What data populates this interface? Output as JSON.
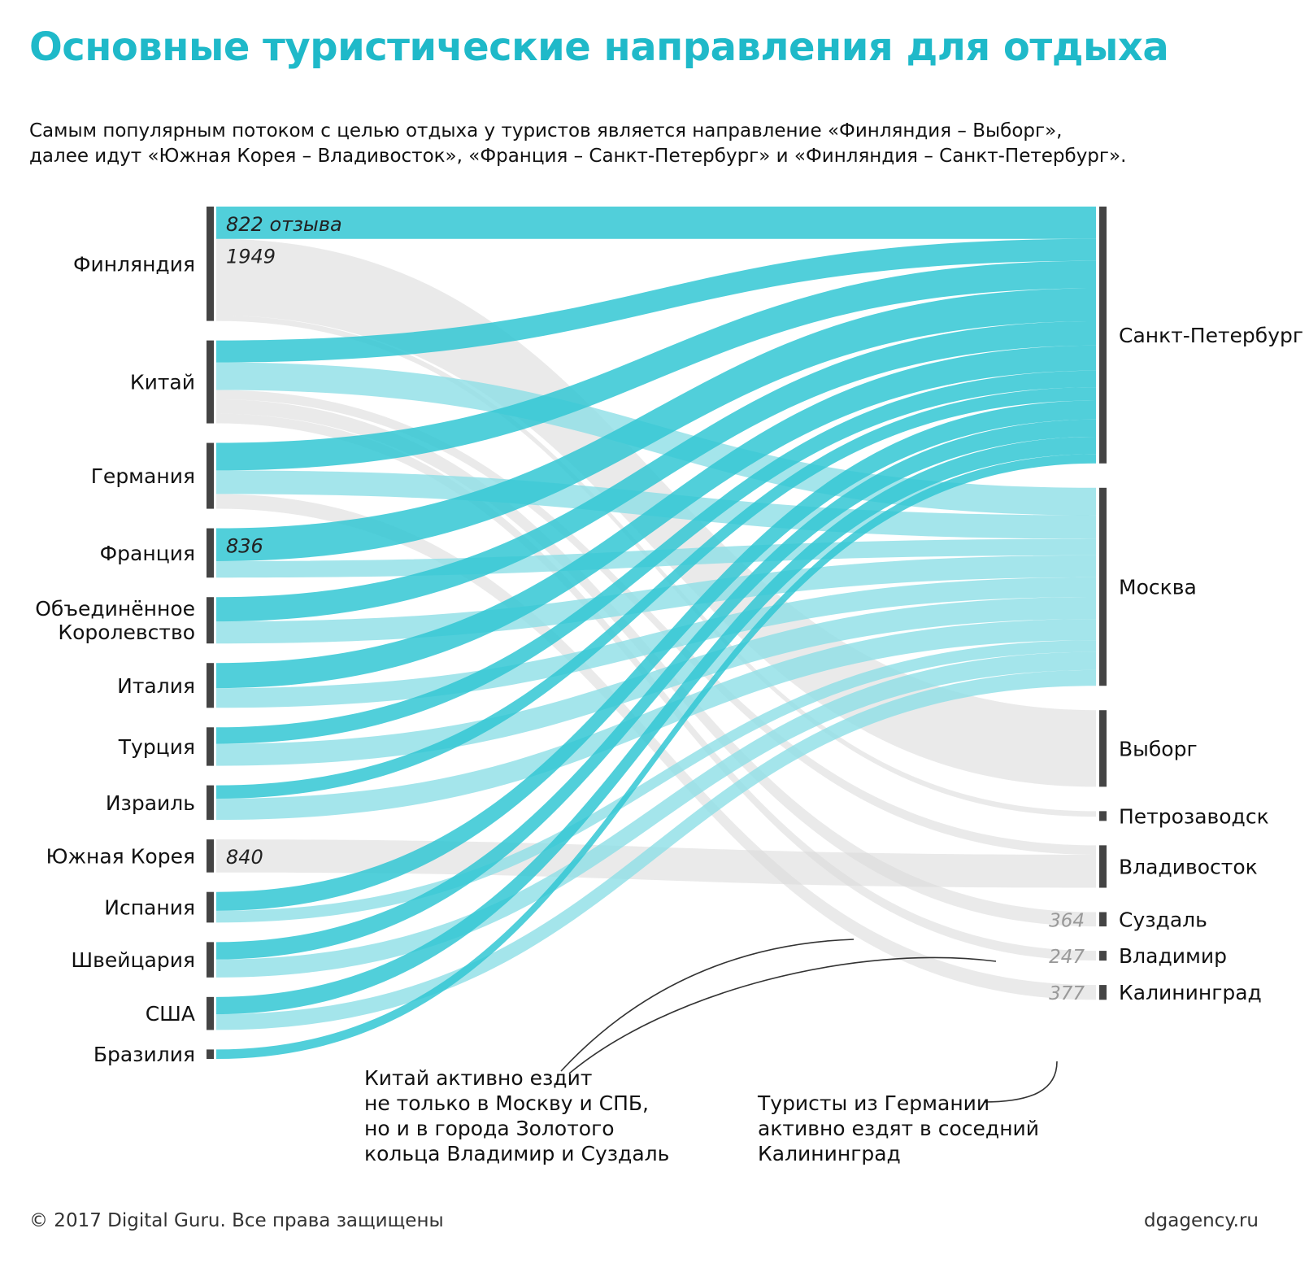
{
  "title": "Основные туристические направления для отдыха",
  "subtitle": [
    "Самым популярным потоком с целью отдыха у туристов является направление «Финляндия – Выборг»,",
    "далее идут «Южная Корея – Владивосток», «Франция – Санкт-Петербург» и «Финляндия – Санкт-Петербург»."
  ],
  "colors": {
    "title": "#1fb9c9",
    "spb_flow": "#33c7d3",
    "msk_flow": "#8ddfe6",
    "other_flow": "#d9d9d9",
    "node_bar": "#444444"
  },
  "chart_data": {
    "type": "sankey",
    "unit": "отзывы",
    "sources": [
      "Финляндия",
      "Китай",
      "Германия",
      "Франция",
      "Объединённое Королевство",
      "Италия",
      "Турция",
      "Израиль",
      "Южная Корея",
      "Испания",
      "Швейцария",
      "США",
      "Бразилия"
    ],
    "source_labels": [
      [
        "Финляндия"
      ],
      [
        "Китай"
      ],
      [
        "Германия"
      ],
      [
        "Франция"
      ],
      [
        "Объединённое",
        "Королевство"
      ],
      [
        "Италия"
      ],
      [
        "Турция"
      ],
      [
        "Израиль"
      ],
      [
        "Южная Корея"
      ],
      [
        "Испания"
      ],
      [
        "Швейцария"
      ],
      [
        "США"
      ],
      [
        "Бразилия"
      ]
    ],
    "targets": [
      "Санкт-Петербург",
      "Москва",
      "Выборг",
      "Петрозаводск",
      "Владивосток",
      "Суздаль",
      "Владимир",
      "Калининград"
    ],
    "links": [
      {
        "source": "Финляндия",
        "target": "Санкт-Петербург",
        "value": 822,
        "label": "822 отзыва"
      },
      {
        "source": "Финляндия",
        "target": "Выборг",
        "value": 1949,
        "label": "1949"
      },
      {
        "source": "Финляндия",
        "target": "Петрозаводск",
        "value": 140
      },
      {
        "source": "Китай",
        "target": "Санкт-Петербург",
        "value": 560
      },
      {
        "source": "Китай",
        "target": "Москва",
        "value": 700
      },
      {
        "source": "Китай",
        "target": "Владимир",
        "value": 247,
        "label": "247"
      },
      {
        "source": "Китай",
        "target": "Суздаль",
        "value": 364,
        "label": "364"
      },
      {
        "source": "Китай",
        "target": "Владивосток",
        "value": 240
      },
      {
        "source": "Германия",
        "target": "Санкт-Петербург",
        "value": 700
      },
      {
        "source": "Германия",
        "target": "Москва",
        "value": 600
      },
      {
        "source": "Германия",
        "target": "Калининград",
        "value": 377,
        "label": "377"
      },
      {
        "source": "Франция",
        "target": "Санкт-Петербург",
        "value": 836,
        "label": "836"
      },
      {
        "source": "Франция",
        "target": "Москва",
        "value": 420
      },
      {
        "source": "Объединённое Королевство",
        "target": "Санкт-Петербург",
        "value": 620
      },
      {
        "source": "Объединённое Королевство",
        "target": "Москва",
        "value": 560
      },
      {
        "source": "Италия",
        "target": "Санкт-Петербург",
        "value": 640
      },
      {
        "source": "Италия",
        "target": "Москва",
        "value": 500
      },
      {
        "source": "Турция",
        "target": "Санкт-Петербург",
        "value": 420
      },
      {
        "source": "Турция",
        "target": "Москва",
        "value": 560
      },
      {
        "source": "Израиль",
        "target": "Санкт-Петербург",
        "value": 340
      },
      {
        "source": "Израиль",
        "target": "Москва",
        "value": 540
      },
      {
        "source": "Южная Корея",
        "target": "Владивосток",
        "value": 840,
        "label": "840"
      },
      {
        "source": "Испания",
        "target": "Санкт-Петербург",
        "value": 480
      },
      {
        "source": "Испания",
        "target": "Москва",
        "value": 300
      },
      {
        "source": "Швейцария",
        "target": "Санкт-Петербург",
        "value": 440
      },
      {
        "source": "Швейцария",
        "target": "Москва",
        "value": 460
      },
      {
        "source": "США",
        "target": "Санкт-Петербург",
        "value": 440
      },
      {
        "source": "США",
        "target": "Москва",
        "value": 400
      },
      {
        "source": "Бразилия",
        "target": "Санкт-Петербург",
        "value": 240
      }
    ]
  },
  "annotations": {
    "china_note": [
      "Китай активно ездит",
      "не только в Москву и СПБ,",
      "но и в города Золотого",
      "кольца Владимир и Суздаль"
    ],
    "germany_note": [
      "Туристы из Германии",
      "активно ездят в соседний",
      "Калининград"
    ]
  },
  "footer": {
    "copyright": "© 2017 Digital Guru. Все права защищены",
    "site": "dgagency.ru"
  }
}
